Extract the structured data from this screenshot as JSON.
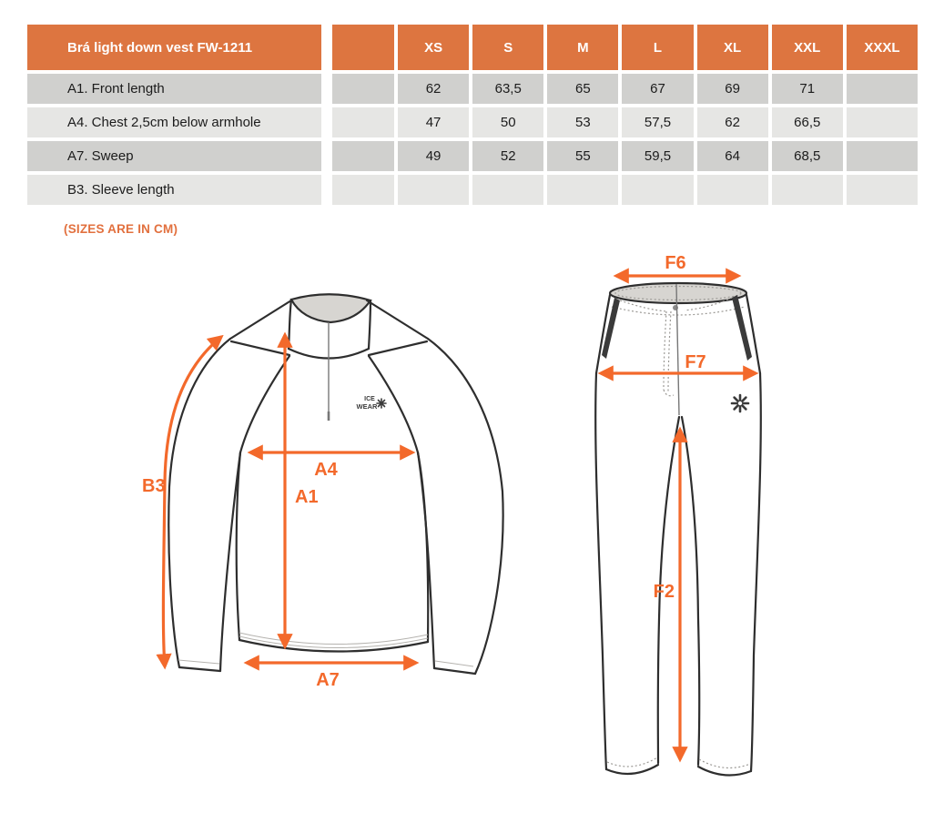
{
  "table": {
    "title": "Brá light down vest FW-1211",
    "sizes": [
      "XS",
      "S",
      "M",
      "L",
      "XL",
      "XXL",
      "XXXL"
    ],
    "rows": [
      {
        "label": "A1. Front length",
        "values": [
          "62",
          "63,5",
          "65",
          "67",
          "69",
          "71",
          ""
        ]
      },
      {
        "label": "A4. Chest 2,5cm below armhole",
        "values": [
          "47",
          "50",
          "53",
          "57,5",
          "62",
          "66,5",
          ""
        ]
      },
      {
        "label": "A7. Sweep",
        "values": [
          "49",
          "52",
          "55",
          "59,5",
          "64",
          "68,5",
          ""
        ]
      },
      {
        "label": "B3. Sleeve length",
        "values": [
          "",
          "",
          "",
          "",
          "",
          "",
          ""
        ]
      }
    ]
  },
  "note": "(SIZES ARE IN CM)",
  "colors": {
    "header_orange": "#DD7540",
    "row_dark": "#D0D0CE",
    "row_light": "#E6E6E4",
    "arrow_orange": "#F3692B",
    "note_orange": "#E2703E"
  },
  "sweater_diagram": {
    "labels": {
      "b3": "B3",
      "a4": "A4",
      "a1": "A1",
      "a7": "A7"
    },
    "logo": {
      "line1": "ICE",
      "line2": "WEAR"
    }
  },
  "pants_diagram": {
    "labels": {
      "f6": "F6",
      "f7": "F7",
      "f2": "F2"
    }
  }
}
